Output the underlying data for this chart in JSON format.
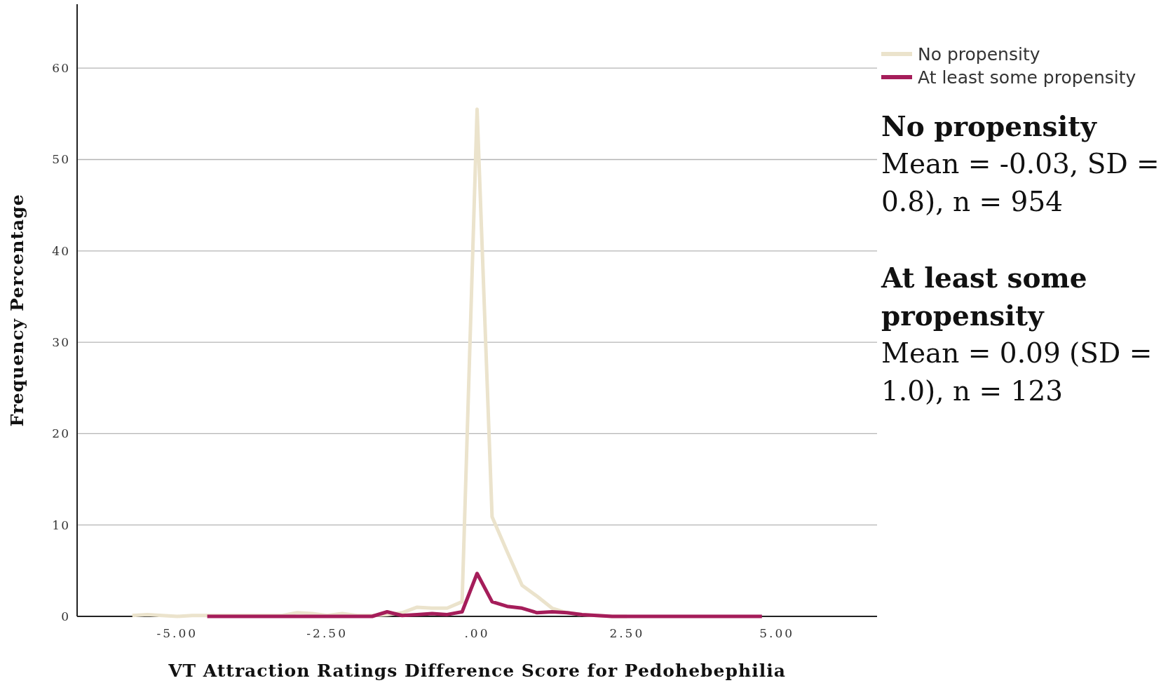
{
  "chart_data": {
    "type": "line",
    "xlabel": "VT Attraction Ratings Difference Score for Pedohebephilia",
    "ylabel": "Frequency Percentage",
    "annotations": [
      "No propensity",
      "Mean = -0.03, SD = 0.8), n = 954",
      "At least some propensity",
      "Mean = 0.09 (SD = 1.0), n = 123"
    ],
    "xlim": [
      -6.67,
      6.67
    ],
    "xticks": [
      {
        "value": -5,
        "label": "-5.00"
      },
      {
        "value": -2.5,
        "label": "-2.50"
      },
      {
        "value": 0,
        "label": ".00"
      },
      {
        "value": 2.5,
        "label": "2.50"
      },
      {
        "value": 5,
        "label": "5.00"
      }
    ],
    "ylim": [
      0,
      67
    ],
    "yticks": [
      0,
      10,
      20,
      30,
      40,
      50,
      60
    ],
    "grid": "y",
    "legend": "top right",
    "series": [
      {
        "name": "No propensity",
        "color": "#ebe3cc",
        "x": [
          -5.75,
          -5.5,
          -5.25,
          -5,
          -4.75,
          -4.5,
          -4.25,
          -4,
          -3.75,
          -3.5,
          -3.25,
          -3,
          -2.75,
          -2.5,
          -2.25,
          -2,
          -1.75,
          -1.5,
          -1.25,
          -1,
          -0.75,
          -0.5,
          -0.25,
          0,
          0.25,
          0.5,
          0.75,
          1,
          1.25,
          1.5,
          1.75,
          2,
          2.25,
          2.5
        ],
        "values": [
          0.1,
          0.2,
          0.1,
          0,
          0.1,
          0.1,
          0.1,
          0.1,
          0.1,
          0.1,
          0.1,
          0.4,
          0.3,
          0.1,
          0.3,
          0.1,
          0.1,
          0.2,
          0.4,
          1.0,
          0.9,
          0.9,
          1.6,
          55.5,
          10.9,
          7.1,
          3.4,
          2.2,
          0.9,
          0.4,
          0.2,
          0.1,
          0,
          0
        ]
      },
      {
        "name": "At least some propensity",
        "color": "#a51d5a",
        "x": [
          -4.5,
          -4.25,
          -4,
          -3.75,
          -3.5,
          -3.25,
          -3,
          -2.75,
          -2.5,
          -2.25,
          -2,
          -1.75,
          -1.5,
          -1.25,
          -1,
          -0.75,
          -0.5,
          -0.25,
          0,
          0.25,
          0.5,
          0.75,
          1,
          1.25,
          1.5,
          1.75,
          2,
          2.25,
          2.5,
          2.75,
          3,
          3.25,
          3.5,
          3.75,
          4,
          4.25,
          4.5,
          4.75
        ],
        "values": [
          0,
          0,
          0,
          0,
          0,
          0,
          0,
          0,
          0,
          0,
          0,
          0,
          0.5,
          0.1,
          0.2,
          0.3,
          0.2,
          0.5,
          4.7,
          1.6,
          1.1,
          0.9,
          0.4,
          0.5,
          0.4,
          0.2,
          0.1,
          0,
          0,
          0,
          0,
          0,
          0,
          0,
          0,
          0,
          0,
          0
        ]
      }
    ]
  }
}
